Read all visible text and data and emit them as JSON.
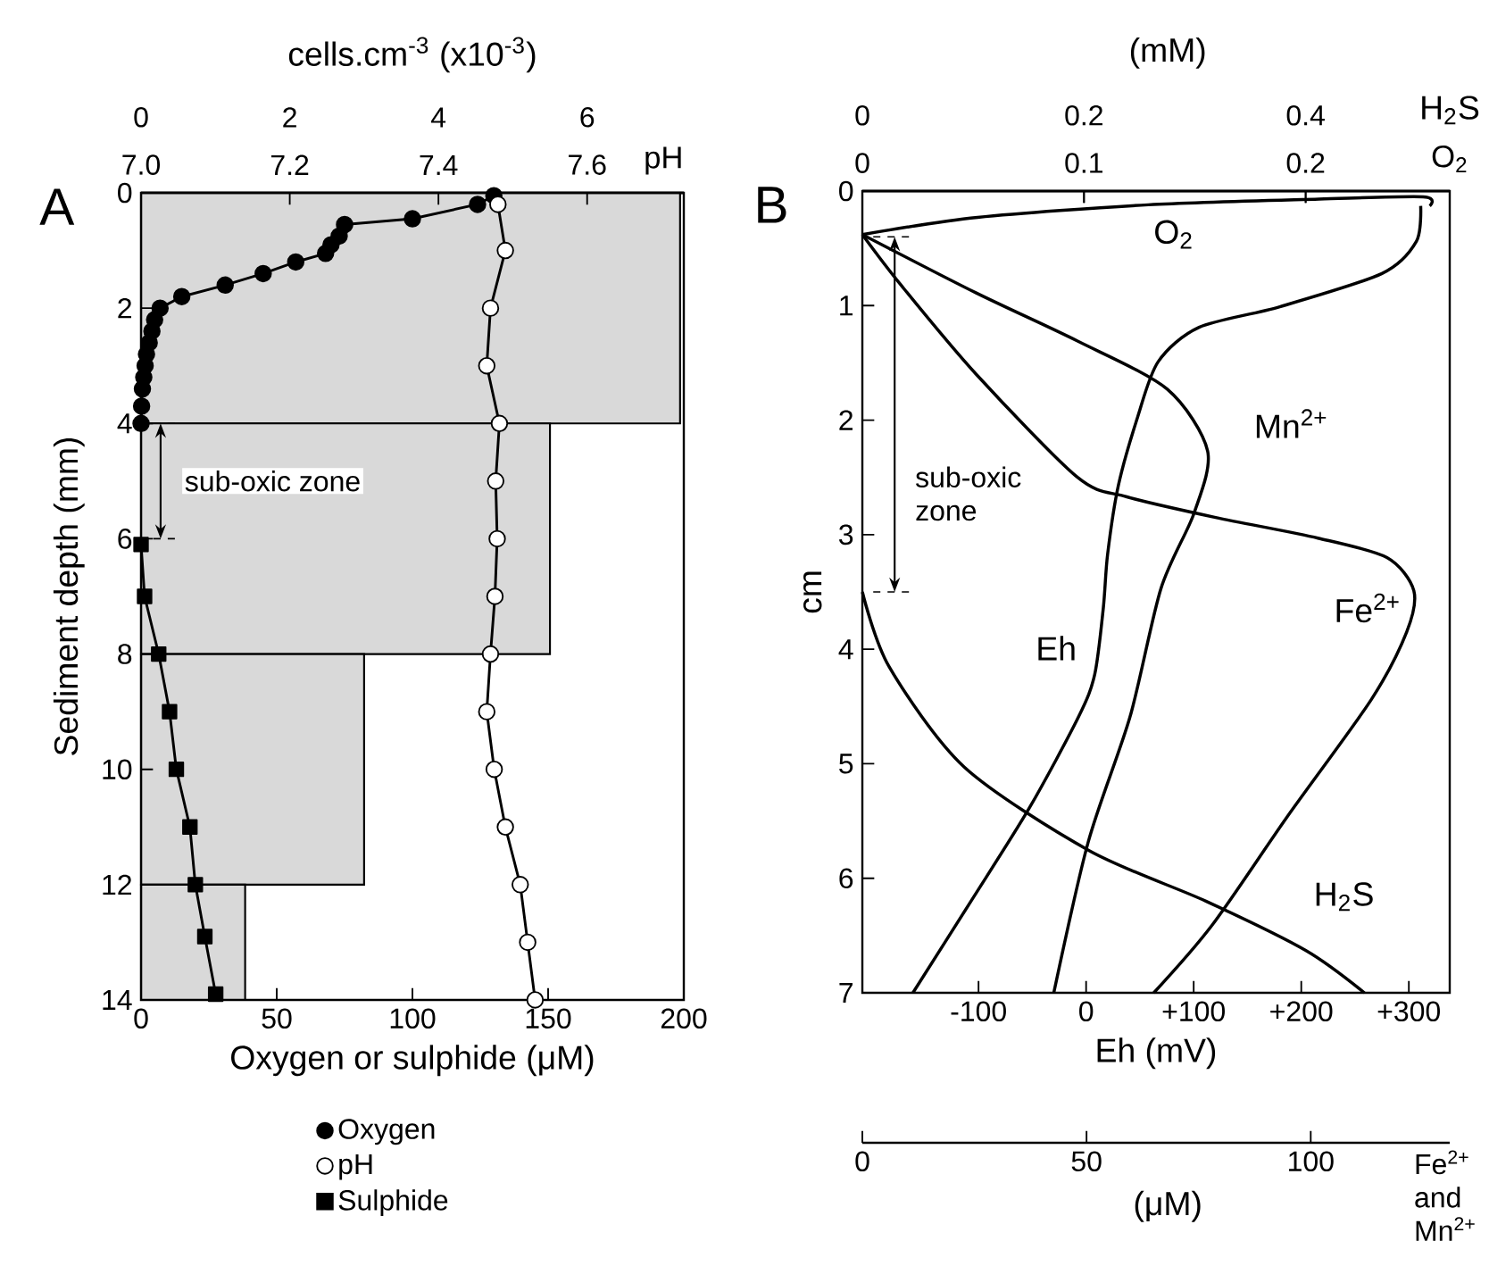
{
  "chart_data": [
    {
      "type": "line",
      "title": "A",
      "xlabel": "Oxygen or sulphide (μM)",
      "ylabel": "Sediment depth (mm)",
      "x2label": "pH",
      "xlim": [
        0,
        200
      ],
      "xticks": [
        0,
        50,
        100,
        150,
        200
      ],
      "x2lim": [
        7.0,
        7.73
      ],
      "x2ticks": [
        {
          "value": 7.0,
          "label": "7.0"
        },
        7.2,
        7.4,
        7.6
      ],
      "ylim": [
        14,
        0
      ],
      "yticks": [
        0,
        2,
        4,
        6,
        8,
        10,
        12,
        14
      ],
      "legend": "bottom",
      "annotations": [
        "sub-oxic zone"
      ],
      "series": [
        {
          "name": "Oxygen",
          "marker": "circle",
          "color": "#000000",
          "x": [
            130,
            124,
            100,
            75,
            73,
            70,
            68,
            57,
            45,
            31,
            15,
            7,
            5,
            4,
            3,
            2,
            1.5,
            1,
            0.5,
            0.2,
            0
          ],
          "values": [
            0.05,
            0.2,
            0.45,
            0.55,
            0.75,
            0.9,
            1.05,
            1.2,
            1.4,
            1.6,
            1.8,
            2.0,
            2.2,
            2.4,
            2.6,
            2.8,
            3.0,
            3.2,
            3.4,
            3.7,
            4.0
          ]
        },
        {
          "name": "pH",
          "axis": "x2",
          "marker": "circle",
          "color": "#ffffff",
          "x": [
            7.48,
            7.49,
            7.47,
            7.465,
            7.482,
            7.477,
            7.479,
            7.476,
            7.47,
            7.465,
            7.475,
            7.49,
            7.51,
            7.52,
            7.53
          ],
          "values": [
            0.2,
            1,
            2,
            3,
            4,
            5,
            6,
            7,
            8,
            9,
            10,
            11,
            12,
            13,
            14
          ]
        },
        {
          "name": "Sulphide",
          "marker": "square",
          "color": "#000000",
          "x": [
            0,
            1.3,
            6.5,
            10.5,
            13,
            18,
            20,
            23.5,
            27.5
          ],
          "values": [
            6.1,
            7,
            8,
            9,
            10,
            11,
            12,
            12.9,
            13.9
          ]
        }
      ]
    },
    {
      "type": "histogram",
      "orientation": "horizontal",
      "xlabel": "cells.cm$^{-3}$ (x10$^{-3}$)",
      "color": "#d9d9d9",
      "xlim": [
        0,
        7.3
      ],
      "xticks": [
        0,
        2,
        4,
        6
      ],
      "ylim": [
        14,
        0
      ],
      "tick_labels": "x",
      "bins": [
        0,
        4,
        8,
        12,
        14
      ],
      "values": [
        7.25,
        5.5,
        3.0,
        1.4
      ]
    },
    {
      "type": "line",
      "title": "B",
      "xlabel": "Eh (mV)",
      "ylabel": "cm",
      "x2label": "O$_{2}$",
      "xlim": [
        -208,
        338
      ],
      "xticks": [
        -100,
        0,
        {
          "value": 100,
          "label": "+100"
        },
        {
          "value": 200,
          "label": "+200"
        },
        {
          "value": 300,
          "label": "+300"
        }
      ],
      "x2lim": [
        0,
        0.265
      ],
      "x2ticks": [
        0,
        0.1,
        0.2
      ],
      "ylim": [
        7,
        0
      ],
      "yticks": [
        0,
        1,
        2,
        3,
        4,
        5,
        6,
        7
      ],
      "annotations": [
        "sub-oxic zone",
        "(mM)"
      ],
      "series": [
        {
          "name": "Eh",
          "color": "#000000",
          "x": [
            311,
            307,
            275,
            180,
            105,
            67,
            48,
            30,
            20,
            16,
            8,
            -7,
            -53,
            -107,
            -161
          ],
          "values": [
            0.13,
            0.44,
            0.72,
            1.01,
            1.19,
            1.49,
            1.97,
            2.57,
            3.17,
            3.64,
            4.22,
            4.59,
            5.39,
            6.2,
            7.0
          ]
        },
        {
          "name": "O$_{2}$",
          "axis": "x2",
          "color": "#000000",
          "x": [
            0.256,
            0.253,
            0.206,
            0.129,
            0.052,
            0
          ],
          "values": [
            0.13,
            0.05,
            0.07,
            0.12,
            0.23,
            0.38
          ]
        }
      ]
    },
    {
      "type": "line",
      "xlabel": "H$_{2}$S",
      "xlim": [
        0,
        0.53
      ],
      "xticks": [
        0,
        0.2,
        0.4
      ],
      "ylim": [
        7,
        0
      ],
      "tick_labels": "x",
      "series": [
        {
          "name": "H$_{2}$S",
          "color": "#000000",
          "x": [
            0,
            0.024,
            0.092,
            0.205,
            0.31,
            0.4,
            0.453
          ],
          "values": [
            3.5,
            4.15,
            5.03,
            5.76,
            6.2,
            6.63,
            7.0
          ]
        }
      ]
    },
    {
      "type": "line",
      "xlabel": "(μM)",
      "xlim": [
        0,
        131
      ],
      "xticks": [
        0,
        50,
        100
      ],
      "ylim": [
        7,
        0
      ],
      "tick_labels": "x",
      "annotations": [
        "Fe$^{2+}$ and Mn$^{2+}$"
      ],
      "series": [
        {
          "name": "Mn$^{2+}$",
          "color": "#000000",
          "x": [
            0,
            25.4,
            48,
            68,
            77,
            74,
            66.6,
            59.7,
            50.4,
            42.7
          ],
          "values": [
            0.38,
            0.89,
            1.31,
            1.73,
            2.27,
            2.81,
            3.47,
            4.59,
            5.68,
            7.0
          ]
        },
        {
          "name": "Fe$^{2+}$",
          "color": "#000000",
          "x": [
            0,
            8.6,
            25.4,
            48,
            59,
            78.8,
            101.6,
            117,
            123,
            121.4,
            113.5,
            94.8,
            78,
            65
          ],
          "values": [
            0.38,
            0.82,
            1.6,
            2.5,
            2.67,
            2.85,
            3.03,
            3.2,
            3.49,
            3.85,
            4.44,
            5.46,
            6.41,
            7.0
          ]
        }
      ]
    }
  ]
}
